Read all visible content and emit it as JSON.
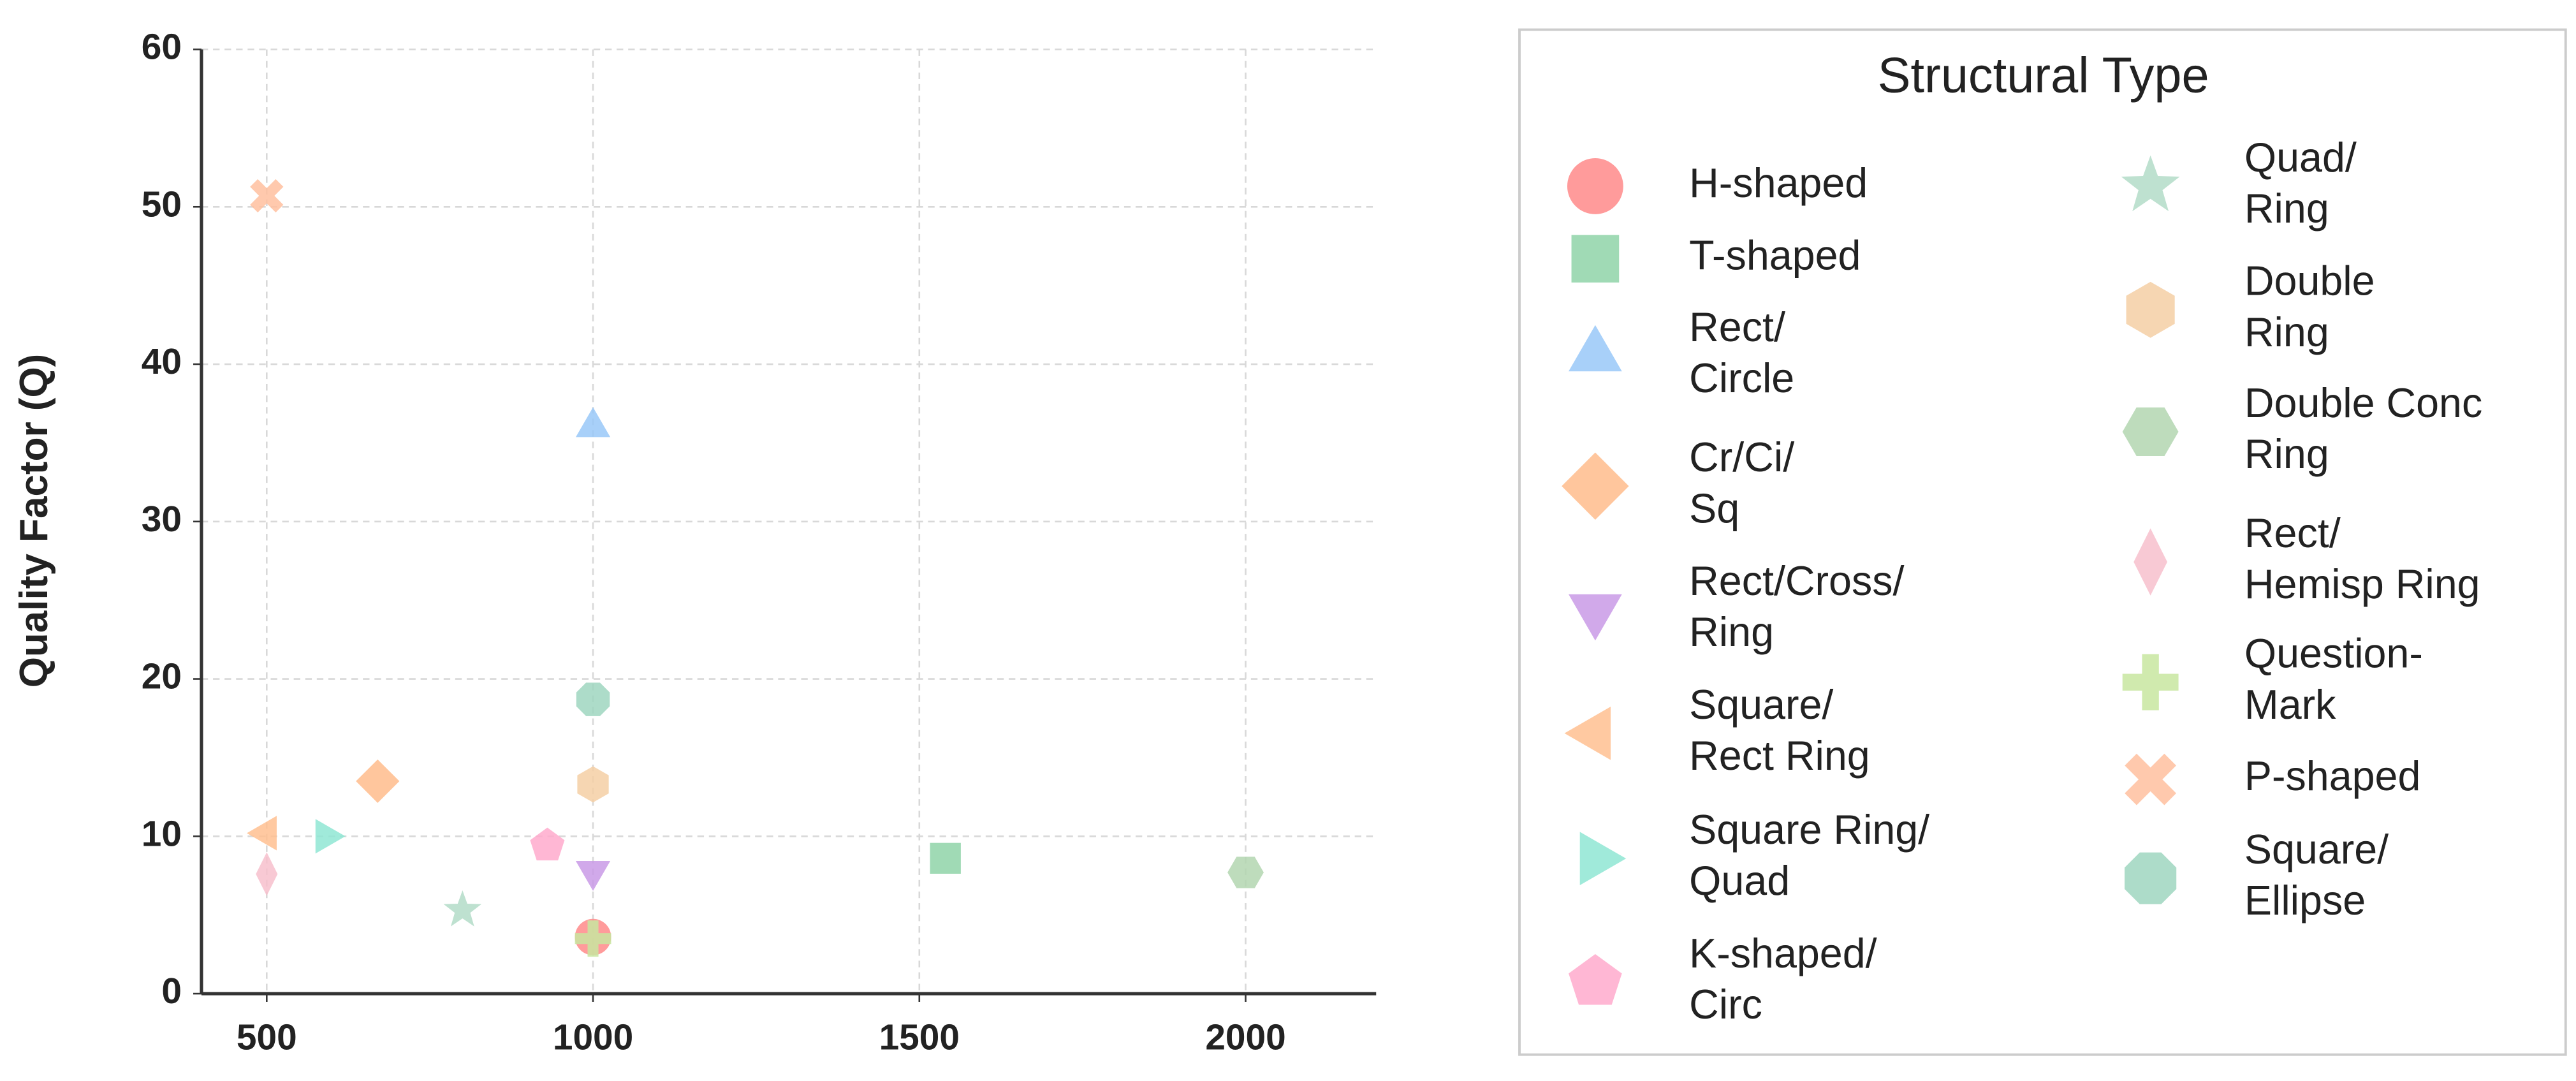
{
  "chart_data": {
    "type": "scatter",
    "y_label": "Quality Factor (Q)",
    "legend_title": "Structural Type",
    "xlim": [
      400,
      2200
    ],
    "xticks": [
      500,
      1000,
      1500,
      2000
    ],
    "ylim": [
      0,
      60
    ],
    "yticks": [
      0,
      10,
      20,
      30,
      40,
      50,
      60
    ],
    "grid": true,
    "legend": "right",
    "series": [
      {
        "name": "H-shaped",
        "color": "#ff8a8a",
        "marker": "circle",
        "x": [
          1000
        ],
        "y": [
          3.6
        ]
      },
      {
        "name": "T-shaped",
        "color": "#8fd4a8",
        "marker": "square",
        "x": [
          1540
        ],
        "y": [
          8.6
        ]
      },
      {
        "name": "Rect/\nCircle",
        "color": "#99c8f8",
        "marker": "triangle-up",
        "x": [
          1000
        ],
        "y": [
          36
        ]
      },
      {
        "name": "Cr/Ci/\nSq",
        "color": "#ffbc8c",
        "marker": "diamond",
        "x": [
          670
        ],
        "y": [
          13.5
        ]
      },
      {
        "name": "Rect/Cross/\nRing",
        "color": "#c99ae6",
        "marker": "triangle-down",
        "x": [
          1000
        ],
        "y": [
          7.8
        ]
      },
      {
        "name": "Square/\nRect Ring",
        "color": "#ffc090",
        "marker": "triangle-left",
        "x": [
          500
        ],
        "y": [
          10.2
        ]
      },
      {
        "name": "Square Ring/\nQuad",
        "color": "#8fe6d4",
        "marker": "triangle-right",
        "x": [
          590
        ],
        "y": [
          10
        ]
      },
      {
        "name": "K-shaped/\nCirc",
        "color": "#ffaacc",
        "marker": "pentagon",
        "x": [
          930
        ],
        "y": [
          9.4
        ]
      },
      {
        "name": "Quad/\nRing",
        "color": "#b3dcc8",
        "marker": "star",
        "x": [
          800
        ],
        "y": [
          5.3
        ]
      },
      {
        "name": "Double\nRing",
        "color": "#f5cfa5",
        "marker": "hexagon",
        "x": [
          1000
        ],
        "y": [
          13.3
        ]
      },
      {
        "name": "Double Conc\nRing",
        "color": "#b3d6b0",
        "marker": "hexagon2",
        "x": [
          2000
        ],
        "y": [
          7.7
        ]
      },
      {
        "name": "Rect/\nHemisp Ring",
        "color": "#f7c0cc",
        "marker": "thin-diamond",
        "x": [
          500
        ],
        "y": [
          7.6
        ]
      },
      {
        "name": "Question-\nMark",
        "color": "#c8e6a0",
        "marker": "plus",
        "x": [
          1000
        ],
        "y": [
          3.5
        ]
      },
      {
        "name": "P-shaped",
        "color": "#ffbf9f",
        "marker": "x",
        "x": [
          500
        ],
        "y": [
          50.7
        ]
      },
      {
        "name": "Square/\nEllipse",
        "color": "#9fd6c0",
        "marker": "octagon",
        "x": [
          1000
        ],
        "y": [
          18.7
        ]
      }
    ]
  }
}
